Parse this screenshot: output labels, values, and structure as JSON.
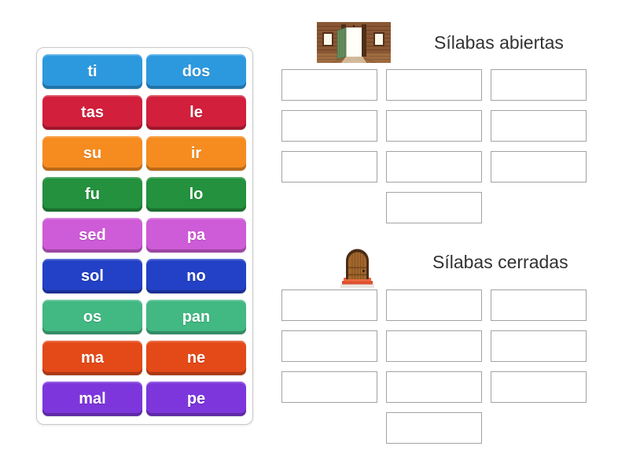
{
  "board": {
    "tiles": [
      {
        "label": "ti",
        "color": "#2C99DF"
      },
      {
        "label": "dos",
        "color": "#2C99DF"
      },
      {
        "label": "tas",
        "color": "#D21F3B"
      },
      {
        "label": "le",
        "color": "#D21F3B"
      },
      {
        "label": "su",
        "color": "#F68C20"
      },
      {
        "label": "ir",
        "color": "#F68C20"
      },
      {
        "label": "fu",
        "color": "#23913D"
      },
      {
        "label": "lo",
        "color": "#23913D"
      },
      {
        "label": "sed",
        "color": "#CE5BD7"
      },
      {
        "label": "pa",
        "color": "#CE5BD7"
      },
      {
        "label": "sol",
        "color": "#2341C6"
      },
      {
        "label": "no",
        "color": "#2341C6"
      },
      {
        "label": "os",
        "color": "#42B883"
      },
      {
        "label": "pan",
        "color": "#42B883"
      },
      {
        "label": "ma",
        "color": "#E34A18"
      },
      {
        "label": "ne",
        "color": "#E34A18"
      },
      {
        "label": "mal",
        "color": "#7D36DC"
      },
      {
        "label": "pe",
        "color": "#7D36DC"
      }
    ]
  },
  "groups": [
    {
      "title": "Sílabas abiertas",
      "icon": "open-door-image",
      "slots": 10
    },
    {
      "title": "Sílabas cerradas",
      "icon": "closed-door-image",
      "slots": 10
    }
  ]
}
